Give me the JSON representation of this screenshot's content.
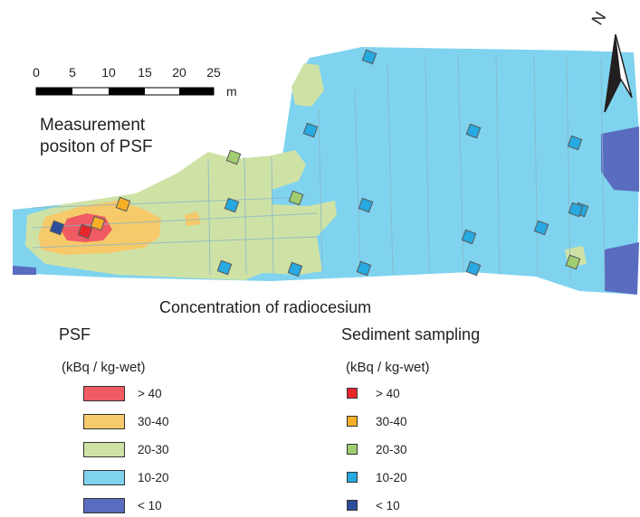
{
  "scale_bar": {
    "ticks": [
      "0",
      "5",
      "10",
      "15",
      "20",
      "25"
    ],
    "unit": "m"
  },
  "north": {
    "label": "N"
  },
  "labels": {
    "measurement_line1": "Measurement",
    "measurement_line2": "positon of PSF",
    "concentration_title": "Concentration of radiocesium"
  },
  "legend_psf": {
    "title": "PSF",
    "unit": "(kBq / kg-wet)",
    "items": [
      {
        "label": "> 40",
        "color": "#f05a63"
      },
      {
        "label": "30-40",
        "color": "#f6c96a"
      },
      {
        "label": "20-30",
        "color": "#cfe2a6"
      },
      {
        "label": "10-20",
        "color": "#7fd3ef"
      },
      {
        "label": "< 10",
        "color": "#5a6cc0"
      }
    ]
  },
  "legend_sediment": {
    "title": "Sediment sampling",
    "unit": "(kBq / kg-wet)",
    "items": [
      {
        "label": "> 40",
        "color": "#e8262a"
      },
      {
        "label": "30-40",
        "color": "#f5b027"
      },
      {
        "label": "20-30",
        "color": "#9fcd6f"
      },
      {
        "label": "10-20",
        "color": "#27a9e1"
      },
      {
        "label": "< 10",
        "color": "#2c4e9a"
      }
    ]
  },
  "sediment_samples": [
    {
      "class": "10-20"
    },
    {
      "class": "10-20"
    },
    {
      "class": "10-20"
    },
    {
      "class": "10-20"
    },
    {
      "class": "20-30"
    },
    {
      "class": "10-20"
    },
    {
      "class": "20-30"
    },
    {
      "class": "10-20"
    },
    {
      "class": "10-20"
    },
    {
      "class": "10-20"
    },
    {
      "class": "10-20"
    },
    {
      "class": "30-40"
    },
    {
      "class": "> 40"
    },
    {
      "class": "30-40"
    },
    {
      "class": "< 10"
    },
    {
      "class": "10-20"
    },
    {
      "class": "10-20"
    },
    {
      "class": "10-20"
    },
    {
      "class": "10-20"
    },
    {
      "class": "20-30"
    },
    {
      "class": "10-20"
    }
  ]
}
